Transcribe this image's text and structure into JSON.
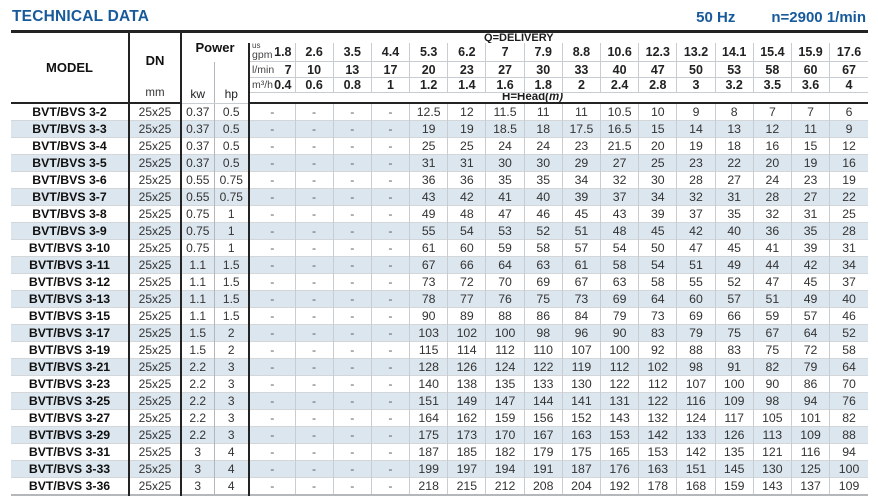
{
  "page": {
    "title": "TECHNICAL DATA",
    "frequency": "50 Hz",
    "speed": "n=2900 1/min"
  },
  "colors": {
    "accent_blue": "#175a9c",
    "row_stripe": "#dce6ee",
    "border_dark": "#232323"
  },
  "table": {
    "headers": {
      "model": "MODEL",
      "dn": "DN",
      "dn_unit": "mm",
      "power": "Power",
      "kw": "kw",
      "hp": "hp",
      "delivery_label": "Q=DELIVERY",
      "head_label": "H=Head",
      "head_unit": "(m)",
      "gpm_label_top": "us",
      "gpm_label": "gpm",
      "lmin_label": "l/min",
      "m3h_label": "m³/h",
      "gpm_values": [
        "1.8",
        "2.6",
        "3.5",
        "4.4",
        "5.3",
        "6.2",
        "7",
        "7.9",
        "8.8",
        "10.6",
        "12.3",
        "13.2",
        "14.1",
        "15.4",
        "15.9",
        "17.6"
      ],
      "lmin_values": [
        "7",
        "10",
        "13",
        "17",
        "20",
        "23",
        "27",
        "30",
        "33",
        "40",
        "47",
        "50",
        "53",
        "58",
        "60",
        "67"
      ],
      "m3h_values": [
        "0.4",
        "0.6",
        "0.8",
        "1",
        "1.2",
        "1.4",
        "1.6",
        "1.8",
        "2",
        "2.4",
        "2.8",
        "3",
        "3.2",
        "3.5",
        "3.6",
        "4"
      ]
    },
    "rows": [
      {
        "model": "BVT/BVS 3-2",
        "dn": "25x25",
        "kw": "0.37",
        "hp": "0.5",
        "head": [
          "-",
          "-",
          "-",
          "-",
          "12.5",
          "12",
          "11.5",
          "11",
          "11",
          "10.5",
          "10",
          "9",
          "8",
          "7",
          "7",
          "6"
        ]
      },
      {
        "model": "BVT/BVS 3-3",
        "dn": "25x25",
        "kw": "0.37",
        "hp": "0.5",
        "head": [
          "-",
          "-",
          "-",
          "-",
          "19",
          "19",
          "18.5",
          "18",
          "17.5",
          "16.5",
          "15",
          "14",
          "13",
          "12",
          "11",
          "9"
        ]
      },
      {
        "model": "BVT/BVS 3-4",
        "dn": "25x25",
        "kw": "0.37",
        "hp": "0.5",
        "head": [
          "-",
          "-",
          "-",
          "-",
          "25",
          "25",
          "24",
          "24",
          "23",
          "21.5",
          "20",
          "19",
          "18",
          "16",
          "15",
          "12"
        ]
      },
      {
        "model": "BVT/BVS 3-5",
        "dn": "25x25",
        "kw": "0.37",
        "hp": "0.5",
        "head": [
          "-",
          "-",
          "-",
          "-",
          "31",
          "31",
          "30",
          "30",
          "29",
          "27",
          "25",
          "23",
          "22",
          "20",
          "19",
          "16"
        ]
      },
      {
        "model": "BVT/BVS 3-6",
        "dn": "25x25",
        "kw": "0.55",
        "hp": "0.75",
        "head": [
          "-",
          "-",
          "-",
          "-",
          "36",
          "36",
          "35",
          "35",
          "34",
          "32",
          "30",
          "28",
          "27",
          "24",
          "23",
          "19"
        ]
      },
      {
        "model": "BVT/BVS 3-7",
        "dn": "25x25",
        "kw": "0.55",
        "hp": "0.75",
        "head": [
          "-",
          "-",
          "-",
          "-",
          "43",
          "42",
          "41",
          "40",
          "39",
          "37",
          "34",
          "32",
          "31",
          "28",
          "27",
          "22"
        ]
      },
      {
        "model": "BVT/BVS 3-8",
        "dn": "25x25",
        "kw": "0.75",
        "hp": "1",
        "head": [
          "-",
          "-",
          "-",
          "-",
          "49",
          "48",
          "47",
          "46",
          "45",
          "43",
          "39",
          "37",
          "35",
          "32",
          "31",
          "25"
        ]
      },
      {
        "model": "BVT/BVS 3-9",
        "dn": "25x25",
        "kw": "0.75",
        "hp": "1",
        "head": [
          "-",
          "-",
          "-",
          "-",
          "55",
          "54",
          "53",
          "52",
          "51",
          "48",
          "45",
          "42",
          "40",
          "36",
          "35",
          "28"
        ]
      },
      {
        "model": "BVT/BVS 3-10",
        "dn": "25x25",
        "kw": "0.75",
        "hp": "1",
        "head": [
          "-",
          "-",
          "-",
          "-",
          "61",
          "60",
          "59",
          "58",
          "57",
          "54",
          "50",
          "47",
          "45",
          "41",
          "39",
          "31"
        ]
      },
      {
        "model": "BVT/BVS 3-11",
        "dn": "25x25",
        "kw": "1.1",
        "hp": "1.5",
        "head": [
          "-",
          "-",
          "-",
          "-",
          "67",
          "66",
          "64",
          "63",
          "61",
          "58",
          "54",
          "51",
          "49",
          "44",
          "42",
          "34"
        ]
      },
      {
        "model": "BVT/BVS 3-12",
        "dn": "25x25",
        "kw": "1.1",
        "hp": "1.5",
        "head": [
          "-",
          "-",
          "-",
          "-",
          "73",
          "72",
          "70",
          "69",
          "67",
          "63",
          "58",
          "55",
          "52",
          "47",
          "45",
          "37"
        ]
      },
      {
        "model": "BVT/BVS 3-13",
        "dn": "25x25",
        "kw": "1.1",
        "hp": "1.5",
        "head": [
          "-",
          "-",
          "-",
          "-",
          "78",
          "77",
          "76",
          "75",
          "73",
          "69",
          "64",
          "60",
          "57",
          "51",
          "49",
          "40"
        ]
      },
      {
        "model": "BVT/BVS 3-15",
        "dn": "25x25",
        "kw": "1.1",
        "hp": "1.5",
        "head": [
          "-",
          "-",
          "-",
          "-",
          "90",
          "89",
          "88",
          "86",
          "84",
          "79",
          "73",
          "69",
          "66",
          "59",
          "57",
          "46"
        ]
      },
      {
        "model": "BVT/BVS 3-17",
        "dn": "25x25",
        "kw": "1.5",
        "hp": "2",
        "head": [
          "-",
          "-",
          "-",
          "-",
          "103",
          "102",
          "100",
          "98",
          "96",
          "90",
          "83",
          "79",
          "75",
          "67",
          "64",
          "52"
        ]
      },
      {
        "model": "BVT/BVS 3-19",
        "dn": "25x25",
        "kw": "1.5",
        "hp": "2",
        "head": [
          "-",
          "-",
          "-",
          "-",
          "115",
          "114",
          "112",
          "110",
          "107",
          "100",
          "92",
          "88",
          "83",
          "75",
          "72",
          "58"
        ]
      },
      {
        "model": "BVT/BVS 3-21",
        "dn": "25x25",
        "kw": "2.2",
        "hp": "3",
        "head": [
          "-",
          "-",
          "-",
          "-",
          "128",
          "126",
          "124",
          "122",
          "119",
          "112",
          "102",
          "98",
          "91",
          "82",
          "79",
          "64"
        ]
      },
      {
        "model": "BVT/BVS 3-23",
        "dn": "25x25",
        "kw": "2.2",
        "hp": "3",
        "head": [
          "-",
          "-",
          "-",
          "-",
          "140",
          "138",
          "135",
          "133",
          "130",
          "122",
          "112",
          "107",
          "100",
          "90",
          "86",
          "70"
        ]
      },
      {
        "model": "BVT/BVS 3-25",
        "dn": "25x25",
        "kw": "2.2",
        "hp": "3",
        "head": [
          "-",
          "-",
          "-",
          "-",
          "151",
          "149",
          "147",
          "144",
          "141",
          "131",
          "122",
          "116",
          "109",
          "98",
          "94",
          "76"
        ]
      },
      {
        "model": "BVT/BVS 3-27",
        "dn": "25x25",
        "kw": "2.2",
        "hp": "3",
        "head": [
          "-",
          "-",
          "-",
          "-",
          "164",
          "162",
          "159",
          "156",
          "152",
          "143",
          "132",
          "124",
          "117",
          "105",
          "101",
          "82"
        ]
      },
      {
        "model": "BVT/BVS 3-29",
        "dn": "25x25",
        "kw": "2.2",
        "hp": "3",
        "head": [
          "-",
          "-",
          "-",
          "-",
          "175",
          "173",
          "170",
          "167",
          "163",
          "153",
          "142",
          "133",
          "126",
          "113",
          "109",
          "88"
        ]
      },
      {
        "model": "BVT/BVS 3-31",
        "dn": "25x25",
        "kw": "3",
        "hp": "4",
        "head": [
          "-",
          "-",
          "-",
          "-",
          "187",
          "185",
          "182",
          "179",
          "175",
          "165",
          "153",
          "142",
          "135",
          "121",
          "116",
          "94"
        ]
      },
      {
        "model": "BVT/BVS 3-33",
        "dn": "25x25",
        "kw": "3",
        "hp": "4",
        "head": [
          "-",
          "-",
          "-",
          "-",
          "199",
          "197",
          "194",
          "191",
          "187",
          "176",
          "163",
          "151",
          "145",
          "130",
          "125",
          "100"
        ]
      },
      {
        "model": "BVT/BVS 3-36",
        "dn": "25x25",
        "kw": "3",
        "hp": "4",
        "head": [
          "-",
          "-",
          "-",
          "-",
          "218",
          "215",
          "212",
          "208",
          "204",
          "192",
          "178",
          "168",
          "159",
          "143",
          "137",
          "109"
        ]
      }
    ]
  }
}
